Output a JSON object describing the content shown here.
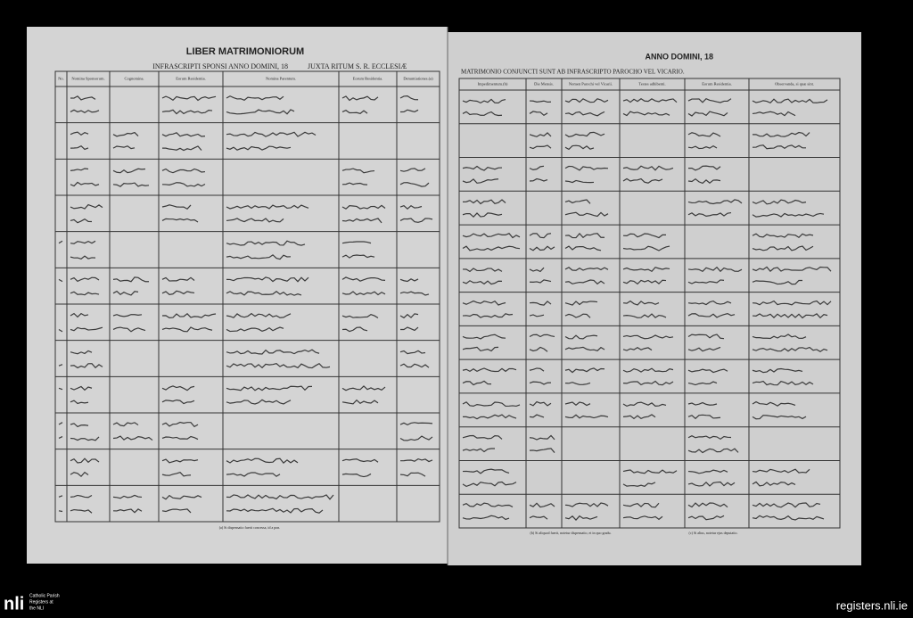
{
  "left_page": {
    "title": "LIBER MATRIMONIORUM",
    "heading": "INFRASCRIPTI SPONSI ANNO DOMINI, 18",
    "heading_2": "JUXTA RITUM S. R. ECCLESIÆ",
    "columns": [
      "No.",
      "Nomina Sponsorum.",
      "Cognomina.",
      "Eorum Residentia.",
      "Nomina Parentum.",
      "Eorum Residentia.",
      "Denuntiationes.(a)"
    ],
    "footnote": "(a) Si dispensatio fuerit concessa, id a pon."
  },
  "right_page": {
    "title": "ANNO DOMINI, 18",
    "heading": "MATRIMONIO CONJUNCTI SUNT AB INFRASCRIPTO PAROCHO VEL VICARIO.",
    "columns": [
      "Impedimentum.(b)",
      "Die Mensis.",
      "Nomen Parochi vel Vicarii.",
      "Testes adhibenti.",
      "Eorum Residentia.",
      "Observanda, si quæ sint."
    ],
    "footnote_b": "(b) Si aliquod fuerit, notetur dispensatio, et in quo gradu.",
    "footnote_c": "(c) Si alius, notetur ejus deputatio."
  },
  "footer": {
    "logo": "nli",
    "logo_caption": [
      "Catholic Parish",
      "Registers at",
      "the NLI"
    ],
    "url": "registers.nli.ie"
  }
}
